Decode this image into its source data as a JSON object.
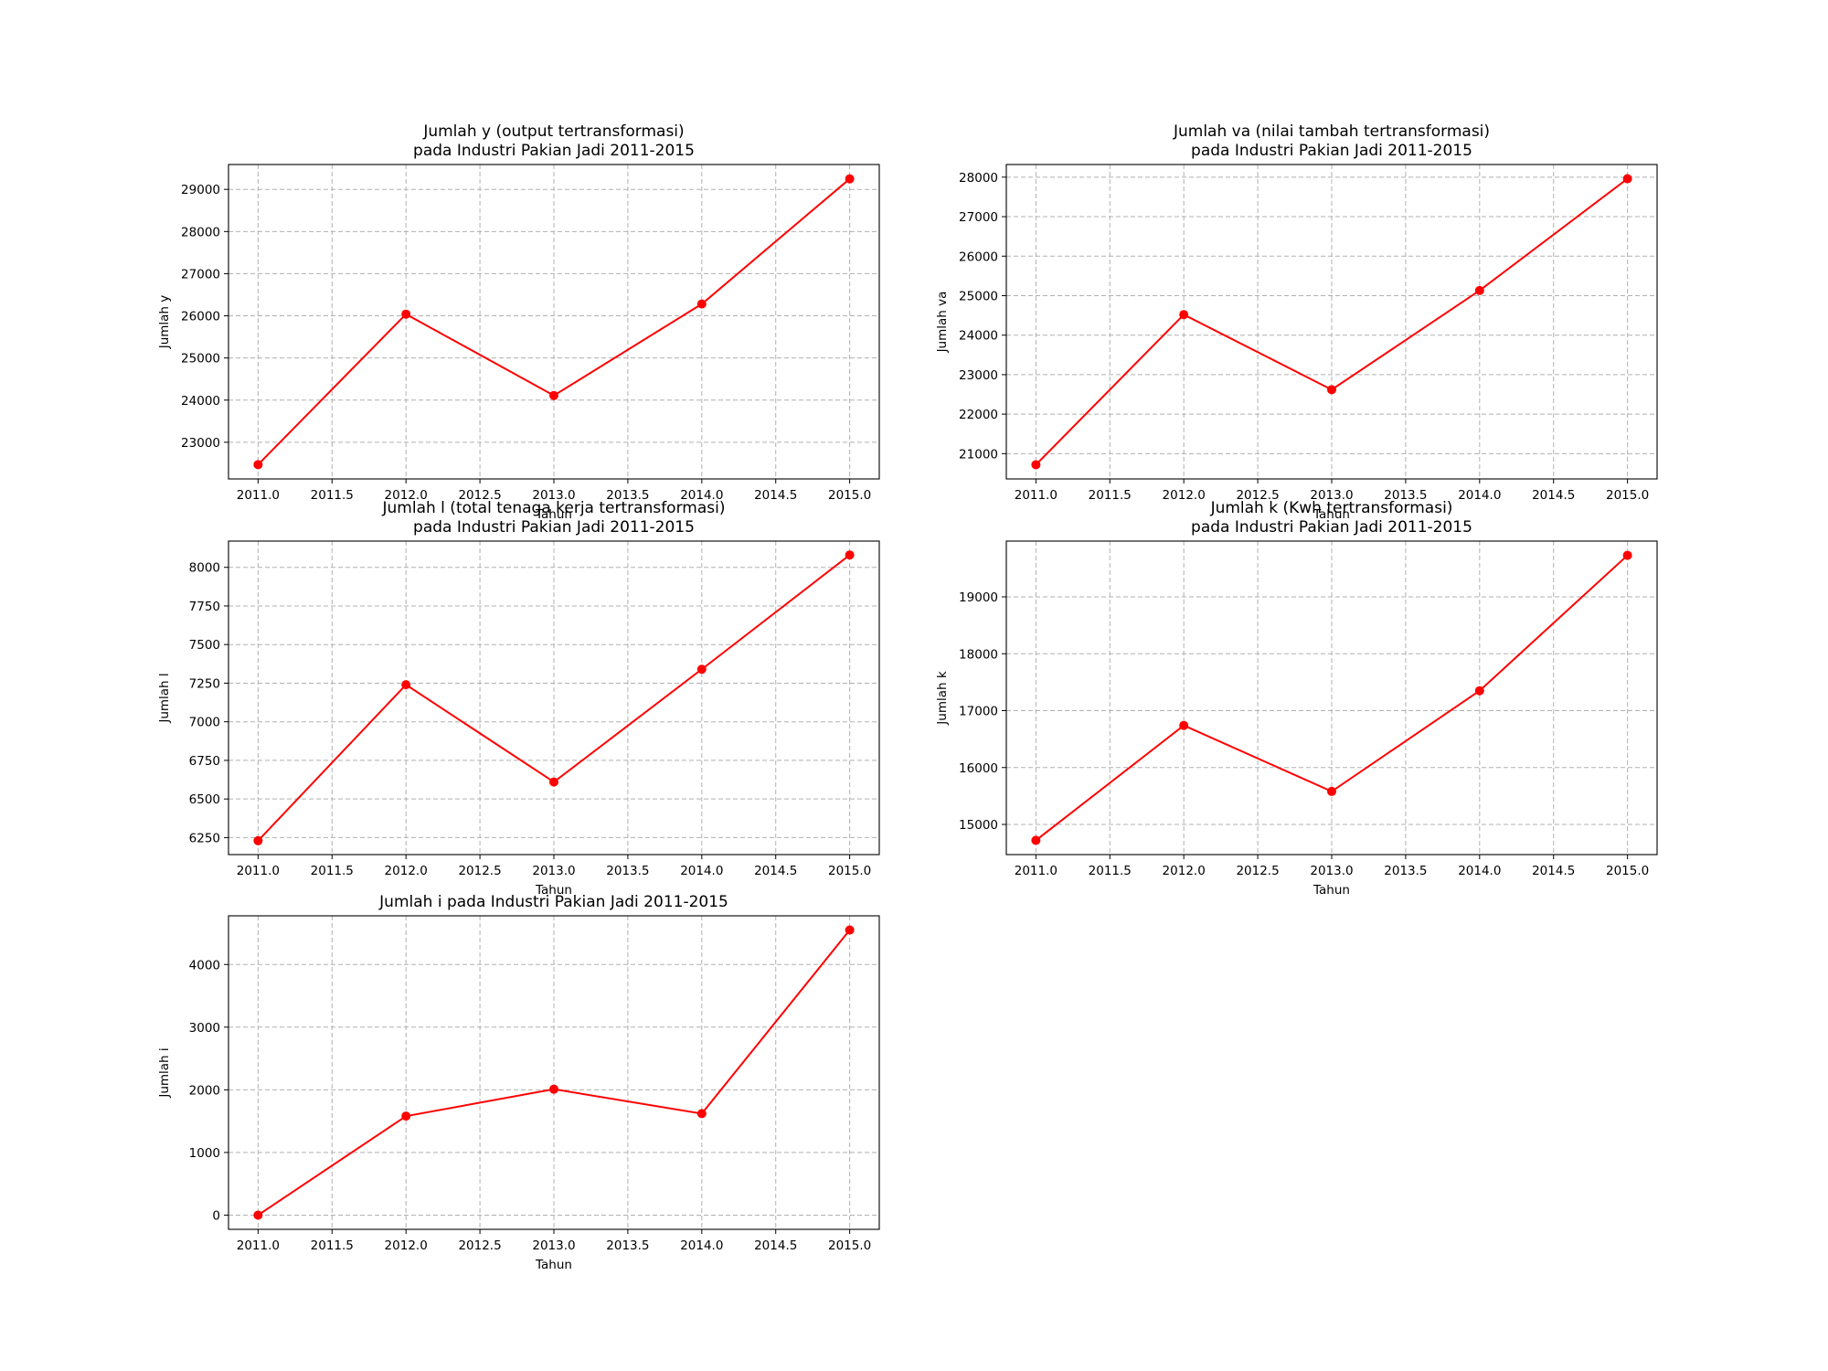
{
  "chart_data": [
    {
      "type": "line",
      "title": [
        "Jumlah y (output tertransformasi)",
        "pada Industri Pakian Jadi 2011-2015"
      ],
      "xlabel": "Tahun",
      "ylabel": "Jumlah y",
      "x": [
        2011,
        2012,
        2013,
        2014,
        2015
      ],
      "values": [
        22470,
        26040,
        24110,
        26280,
        29250
      ],
      "xticks": [
        2011.0,
        2011.5,
        2012.0,
        2012.5,
        2013.0,
        2013.5,
        2014.0,
        2014.5,
        2015.0
      ],
      "xtick_labels": [
        "2011.0",
        "2011.5",
        "2012.0",
        "2012.5",
        "2013.0",
        "2013.5",
        "2014.0",
        "2014.5",
        "2015.0"
      ],
      "yticks": [
        23000,
        24000,
        25000,
        26000,
        27000,
        28000,
        29000
      ],
      "ytick_labels": [
        "23000",
        "24000",
        "25000",
        "26000",
        "27000",
        "28000",
        "29000"
      ],
      "xlim": [
        2010.8,
        2015.2
      ],
      "ylim": [
        22130,
        29590
      ],
      "grid": true,
      "color": "#ff0000"
    },
    {
      "type": "line",
      "title": [
        "Jumlah va (nilai tambah tertransformasi)",
        "pada Industri Pakian Jadi 2011-2015"
      ],
      "xlabel": "Tahun",
      "ylabel": "Jumlah va",
      "x": [
        2011,
        2012,
        2013,
        2014,
        2015
      ],
      "values": [
        20720,
        24520,
        22620,
        25130,
        27960
      ],
      "xticks": [
        2011.0,
        2011.5,
        2012.0,
        2012.5,
        2013.0,
        2013.5,
        2014.0,
        2014.5,
        2015.0
      ],
      "xtick_labels": [
        "2011.0",
        "2011.5",
        "2012.0",
        "2012.5",
        "2013.0",
        "2013.5",
        "2014.0",
        "2014.5",
        "2015.0"
      ],
      "yticks": [
        21000,
        22000,
        23000,
        24000,
        25000,
        26000,
        27000,
        28000
      ],
      "ytick_labels": [
        "21000",
        "22000",
        "23000",
        "24000",
        "25000",
        "26000",
        "27000",
        "28000"
      ],
      "xlim": [
        2010.8,
        2015.2
      ],
      "ylim": [
        20360,
        28320
      ],
      "grid": true,
      "color": "#ff0000"
    },
    {
      "type": "line",
      "title": [
        "Jumlah l (total tenaga kerja tertransformasi)",
        "pada Industri Pakian Jadi 2011-2015"
      ],
      "xlabel": "Tahun",
      "ylabel": "Jumlah l",
      "x": [
        2011,
        2012,
        2013,
        2014,
        2015
      ],
      "values": [
        6230,
        7240,
        6610,
        7340,
        8080
      ],
      "xticks": [
        2011.0,
        2011.5,
        2012.0,
        2012.5,
        2013.0,
        2013.5,
        2014.0,
        2014.5,
        2015.0
      ],
      "xtick_labels": [
        "2011.0",
        "2011.5",
        "2012.0",
        "2012.5",
        "2013.0",
        "2013.5",
        "2014.0",
        "2014.5",
        "2015.0"
      ],
      "yticks": [
        6250,
        6500,
        6750,
        7000,
        7250,
        7500,
        7750,
        8000
      ],
      "ytick_labels": [
        "6250",
        "6500",
        "6750",
        "7000",
        "7250",
        "7500",
        "7750",
        "8000"
      ],
      "xlim": [
        2010.8,
        2015.2
      ],
      "ylim": [
        6140,
        8170
      ],
      "grid": true,
      "color": "#ff0000"
    },
    {
      "type": "line",
      "title": [
        "Jumlah k (Kwh tertransformasi)",
        "pada Industri Pakian Jadi 2011-2015"
      ],
      "xlabel": "Tahun",
      "ylabel": "Jumlah k",
      "x": [
        2011,
        2012,
        2013,
        2014,
        2015
      ],
      "values": [
        14720,
        16740,
        15580,
        17350,
        19730
      ],
      "xticks": [
        2011.0,
        2011.5,
        2012.0,
        2012.5,
        2013.0,
        2013.5,
        2014.0,
        2014.5,
        2015.0
      ],
      "xtick_labels": [
        "2011.0",
        "2011.5",
        "2012.0",
        "2012.5",
        "2013.0",
        "2013.5",
        "2014.0",
        "2014.5",
        "2015.0"
      ],
      "yticks": [
        15000,
        16000,
        17000,
        18000,
        19000
      ],
      "ytick_labels": [
        "15000",
        "16000",
        "17000",
        "18000",
        "19000"
      ],
      "xlim": [
        2010.8,
        2015.2
      ],
      "ylim": [
        14470,
        19980
      ],
      "grid": true,
      "color": "#ff0000"
    },
    {
      "type": "line",
      "title": [
        "Jumlah i pada Industri Pakian Jadi 2011-2015"
      ],
      "xlabel": "Tahun",
      "ylabel": "Jumlah i",
      "x": [
        2011,
        2012,
        2013,
        2014,
        2015
      ],
      "values": [
        0,
        1580,
        2010,
        1620,
        4550
      ],
      "xticks": [
        2011.0,
        2011.5,
        2012.0,
        2012.5,
        2013.0,
        2013.5,
        2014.0,
        2014.5,
        2015.0
      ],
      "xtick_labels": [
        "2011.0",
        "2011.5",
        "2012.0",
        "2012.5",
        "2013.0",
        "2013.5",
        "2014.0",
        "2014.5",
        "2015.0"
      ],
      "yticks": [
        0,
        1000,
        2000,
        3000,
        4000
      ],
      "ytick_labels": [
        "0",
        "1000",
        "2000",
        "3000",
        "4000"
      ],
      "xlim": [
        2010.8,
        2015.2
      ],
      "ylim": [
        -227,
        4777
      ],
      "grid": true,
      "color": "#ff0000"
    }
  ]
}
